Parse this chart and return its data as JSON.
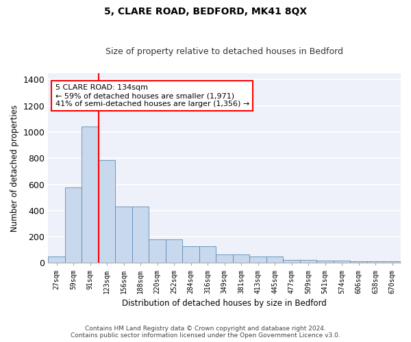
{
  "title": "5, CLARE ROAD, BEDFORD, MK41 8QX",
  "subtitle": "Size of property relative to detached houses in Bedford",
  "xlabel": "Distribution of detached houses by size in Bedford",
  "ylabel": "Number of detached properties",
  "categories": [
    "27sqm",
    "59sqm",
    "91sqm",
    "123sqm",
    "156sqm",
    "188sqm",
    "220sqm",
    "252sqm",
    "284sqm",
    "316sqm",
    "349sqm",
    "381sqm",
    "413sqm",
    "445sqm",
    "477sqm",
    "509sqm",
    "541sqm",
    "574sqm",
    "606sqm",
    "638sqm",
    "670sqm"
  ],
  "values": [
    47,
    577,
    1040,
    785,
    430,
    430,
    182,
    182,
    125,
    125,
    65,
    65,
    47,
    47,
    25,
    25,
    20,
    20,
    13,
    13,
    10
  ],
  "bar_color": "#c9d9ed",
  "bar_edge_color": "#5b8ab5",
  "vline_color": "red",
  "vline_x_index": 3,
  "annotation_text": "5 CLARE ROAD: 134sqm\n← 59% of detached houses are smaller (1,971)\n41% of semi-detached houses are larger (1,356) →",
  "annotation_box_color": "white",
  "annotation_box_edge": "red",
  "ylim": [
    0,
    1450
  ],
  "yticks": [
    0,
    200,
    400,
    600,
    800,
    1000,
    1200,
    1400
  ],
  "background_color": "#eef1f9",
  "grid_color": "white",
  "title_fontsize": 10,
  "subtitle_fontsize": 9,
  "footer_line1": "Contains HM Land Registry data © Crown copyright and database right 2024.",
  "footer_line2": "Contains public sector information licensed under the Open Government Licence v3.0."
}
